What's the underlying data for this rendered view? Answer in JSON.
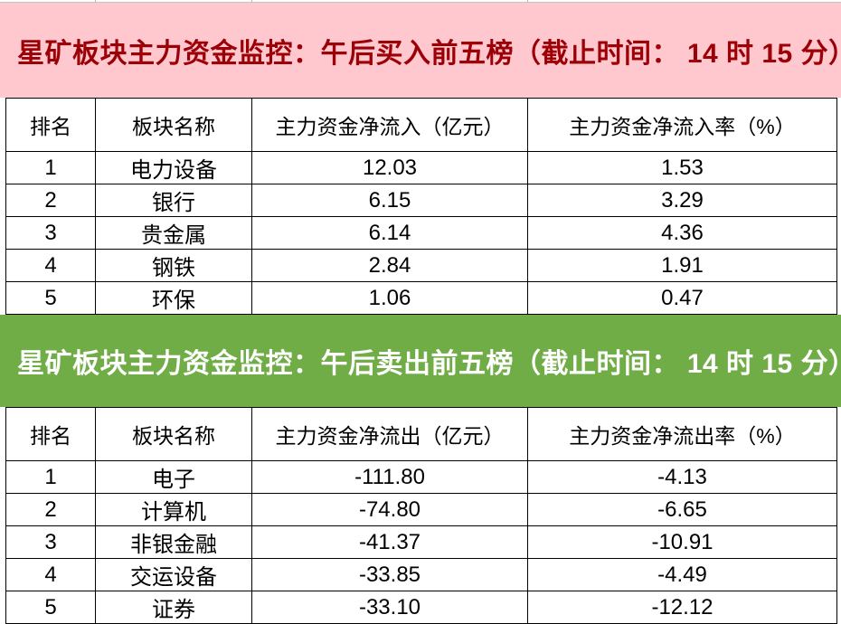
{
  "colors": {
    "buy_banner_bg": "#FFC7CE",
    "buy_banner_text": "#9C0006",
    "sell_banner_bg": "#70AD47",
    "sell_banner_text": "#FFFFFF",
    "grid_border": "#000000",
    "cell_text": "#000000"
  },
  "buy_table": {
    "title": "星矿板块主力资金监控：午后买入前五榜（截止时间： 14 时 15 分）",
    "columns": [
      "排名",
      "板块名称",
      "主力资金净流入（亿元）",
      "主力资金净流入率（%）"
    ],
    "rows": [
      [
        "1",
        "电力设备",
        "12.03",
        "1.53"
      ],
      [
        "2",
        "银行",
        "6.15",
        "3.29"
      ],
      [
        "3",
        "贵金属",
        "6.14",
        "4.36"
      ],
      [
        "4",
        "钢铁",
        "2.84",
        "1.91"
      ],
      [
        "5",
        "环保",
        "1.06",
        "0.47"
      ]
    ]
  },
  "sell_table": {
    "title": "星矿板块主力资金监控：午后卖出前五榜（截止时间： 14 时 15 分）",
    "columns": [
      "排名",
      "板块名称",
      "主力资金净流出（亿元）",
      "主力资金净流出率（%）"
    ],
    "rows": [
      [
        "1",
        "电子",
        "-111.80",
        "-4.13"
      ],
      [
        "2",
        "计算机",
        "-74.80",
        "-6.65"
      ],
      [
        "3",
        "非银金融",
        "-41.37",
        "-10.91"
      ],
      [
        "4",
        "交运设备",
        "-33.85",
        "-4.49"
      ],
      [
        "5",
        "证券",
        "-33.10",
        "-12.12"
      ]
    ]
  }
}
